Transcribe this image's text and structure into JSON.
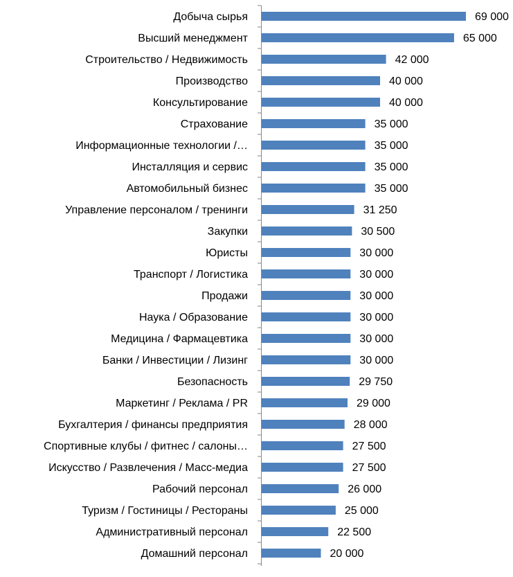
{
  "chart_data": {
    "type": "bar",
    "orientation": "horizontal",
    "bar_color": "#4F81BD",
    "grid": false,
    "categories": [
      "Добыча сырья",
      "Высший менеджмент",
      "Строительство / Недвижимость",
      "Производство",
      "Консультирование",
      "Страхование",
      "Информационные технологии /…",
      "Инсталляция и сервис",
      "Автомобильный бизнес",
      "Управление персоналом / тренинги",
      "Закупки",
      "Юристы",
      "Транспорт / Логистика",
      "Продажи",
      "Наука / Образование",
      "Медицина / Фармацевтика",
      "Банки / Инвестиции / Лизинг",
      "Безопасность",
      "Маркетинг / Реклама / PR",
      "Бухгалтерия / финансы предприятия",
      "Спортивные клубы / фитнес / салоны…",
      "Искусство / Развлечения / Масс-медиа",
      "Рабочий персонал",
      "Туризм / Гостиницы / Рестораны",
      "Административный персонал",
      "Домашний персонал"
    ],
    "values": [
      69000,
      65000,
      42000,
      40000,
      40000,
      35000,
      35000,
      35000,
      35000,
      31250,
      30500,
      30000,
      30000,
      30000,
      30000,
      30000,
      30000,
      29750,
      29000,
      28000,
      27500,
      27500,
      26000,
      25000,
      22500,
      20000
    ],
    "value_labels": [
      "69 000",
      "65 000",
      "42 000",
      "40 000",
      "40 000",
      "35 000",
      "35 000",
      "35 000",
      "35 000",
      "31 250",
      "30 500",
      "30 000",
      "30 000",
      "30 000",
      "30 000",
      "30 000",
      "30 000",
      "29 750",
      "29 000",
      "28 000",
      "27 500",
      "27 500",
      "26 000",
      "25 000",
      "22 500",
      "20 000"
    ],
    "xlim": [
      0,
      69000
    ]
  }
}
